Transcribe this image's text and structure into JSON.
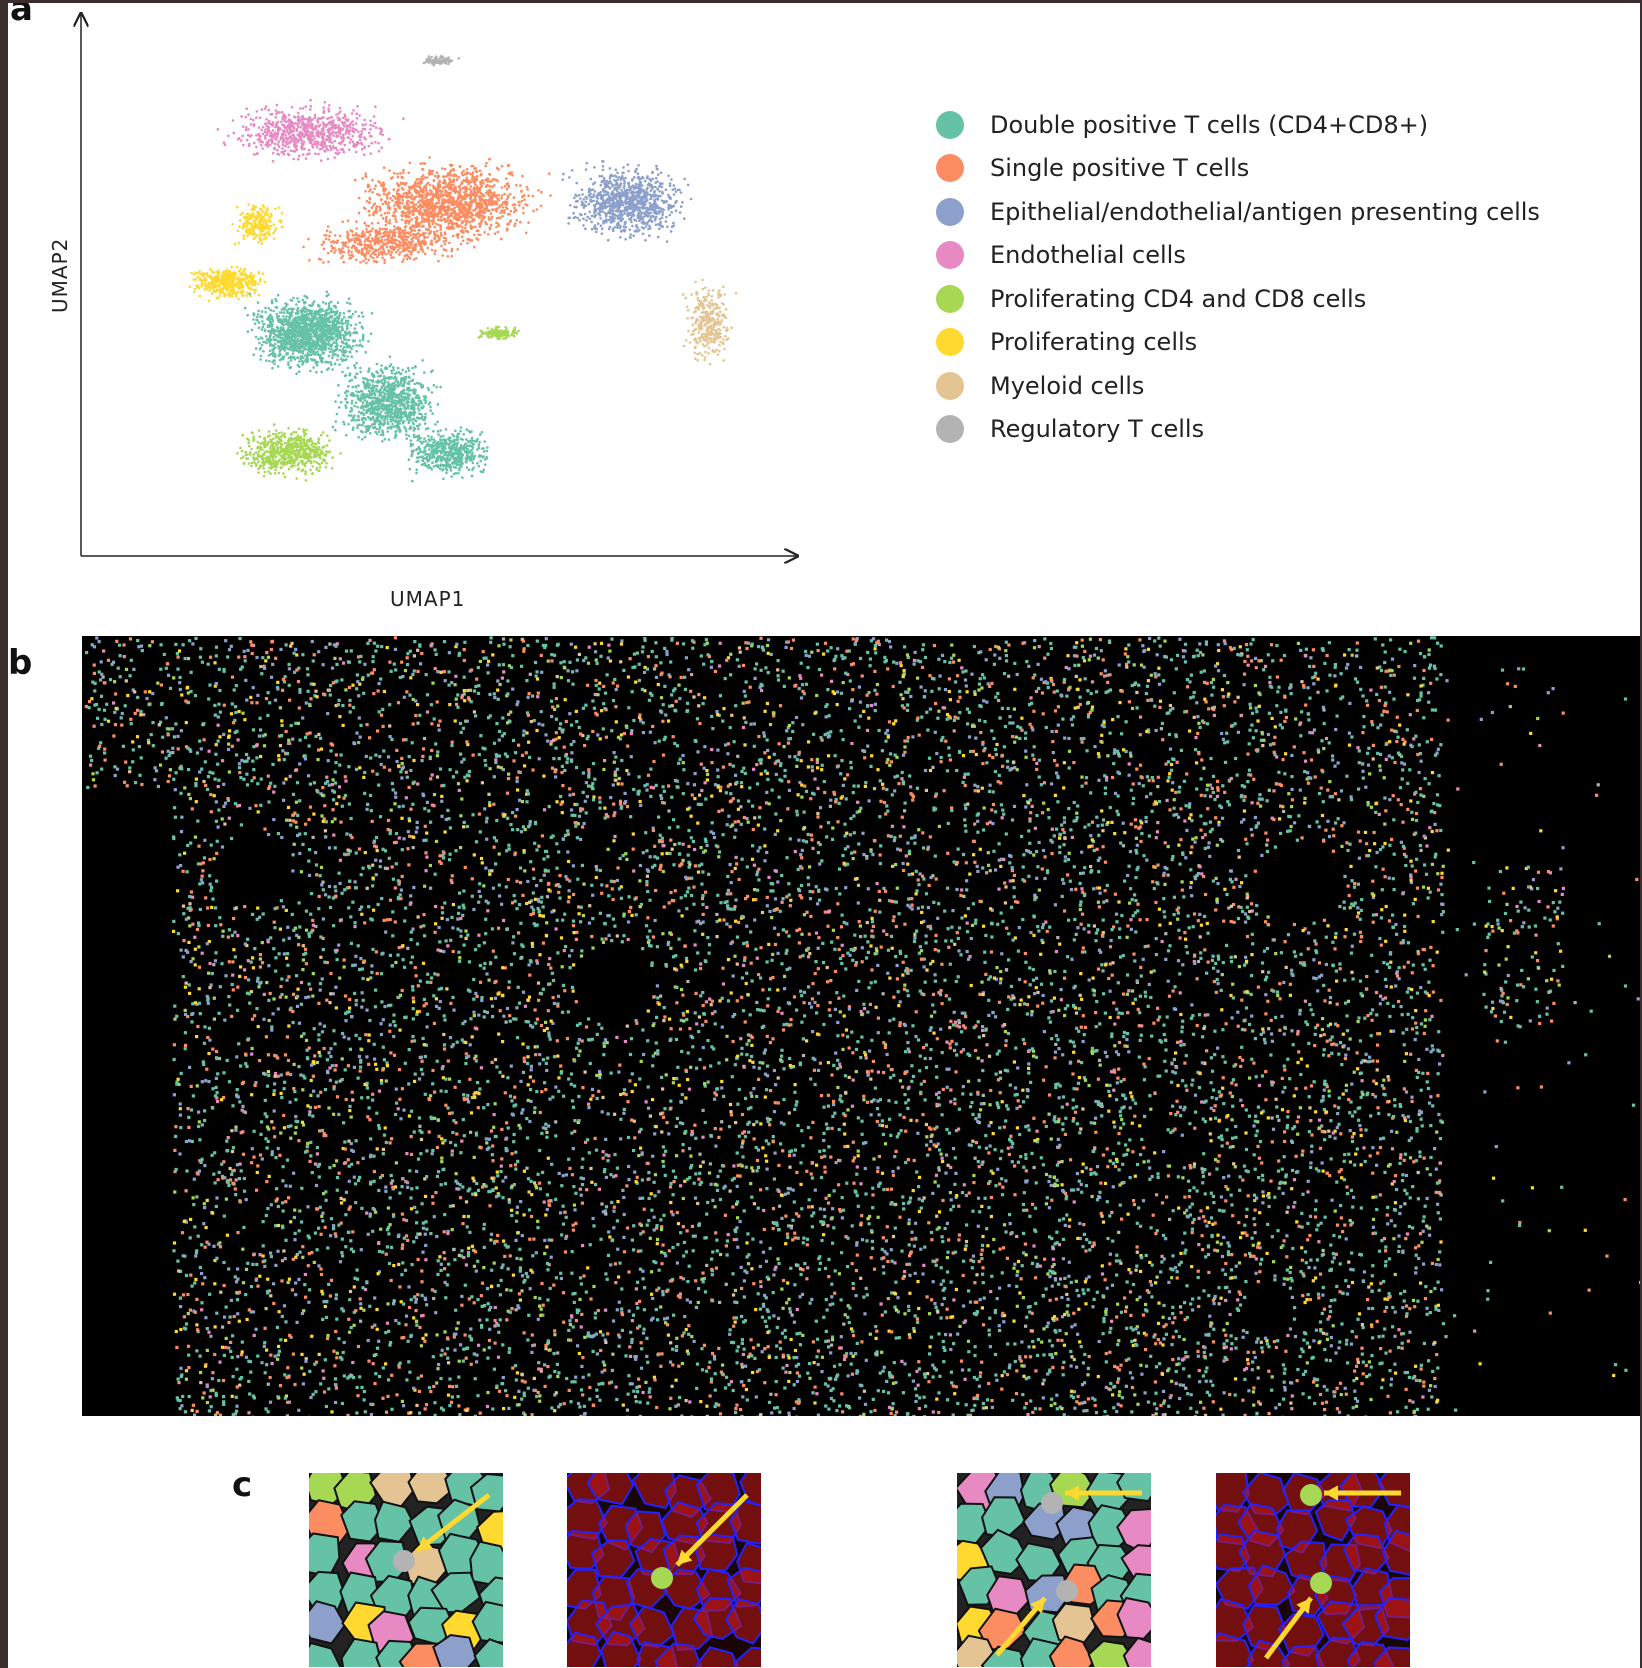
{
  "panels": {
    "a": "a",
    "b": "b",
    "c": "c"
  },
  "chart_data": {
    "type": "scatter",
    "xlabel": "UMAP1",
    "ylabel": "UMAP2",
    "legend_position": "right",
    "series": [
      {
        "name": "Double positive T cells (CD4+CD8+)",
        "color": "#66c2a5"
      },
      {
        "name": "Single positive T cells",
        "color": "#fc8d62"
      },
      {
        "name": "Epithelial/endothelial/antigen presenting cells",
        "color": "#8da0cb"
      },
      {
        "name": "Endothelial cells",
        "color": "#e78ac3"
      },
      {
        "name": "Proliferating CD4 and CD8 cells",
        "color": "#a6d854"
      },
      {
        "name": "Proliferating cells",
        "color": "#ffd92f"
      },
      {
        "name": "Myeloid cells",
        "color": "#e5c494"
      },
      {
        "name": "Regulatory T cells",
        "color": "#b3b3b3"
      }
    ]
  },
  "colors": {
    "background_spatial": "#000000",
    "arrow": "#ffd92f",
    "membrane_stain": "#2222ff",
    "cytoplasm_stain": "#c01818"
  }
}
